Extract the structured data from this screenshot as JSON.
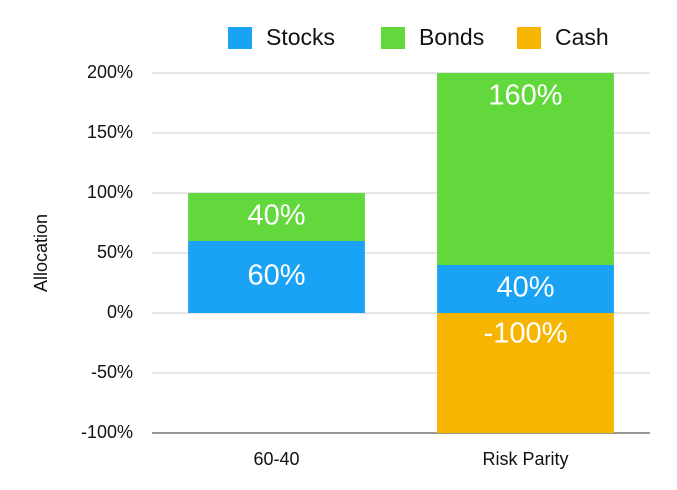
{
  "chart_data": {
    "type": "stacked-bar",
    "y_label": "Allocation",
    "categories": [
      "60-40",
      "Risk Parity"
    ],
    "series": [
      {
        "name": "Stocks",
        "color": "#1aa3f5",
        "values": [
          60,
          40
        ],
        "value_labels": [
          "60%",
          "40%"
        ]
      },
      {
        "name": "Bonds",
        "color": "#62d83c",
        "values": [
          40,
          160
        ],
        "value_labels": [
          "40%",
          "160%"
        ]
      },
      {
        "name": "Cash",
        "color": "#f6b500",
        "values": [
          null,
          -100
        ],
        "value_labels": [
          null,
          "-100%"
        ]
      }
    ],
    "ylim": [
      -100,
      200
    ],
    "yticks": [
      {
        "value": -100,
        "label": "-100%"
      },
      {
        "value": -50,
        "label": "-50%"
      },
      {
        "value": 0,
        "label": "0%"
      },
      {
        "value": 50,
        "label": "50%"
      },
      {
        "value": 100,
        "label": "100%"
      },
      {
        "value": 150,
        "label": "150%"
      },
      {
        "value": 200,
        "label": "200%"
      }
    ],
    "grid": true,
    "legend": "top"
  }
}
